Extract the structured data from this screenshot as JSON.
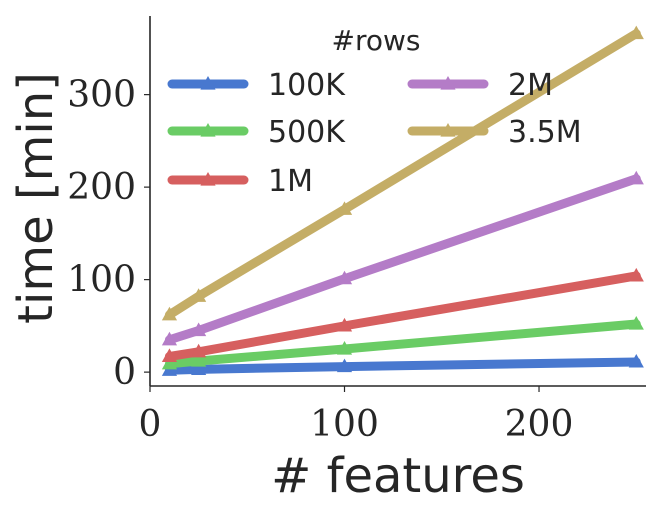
{
  "chart_data": {
    "type": "line",
    "title": "",
    "xlabel": "# features",
    "ylabel": "time [min]",
    "xlim": [
      0,
      255
    ],
    "ylim": [
      -15,
      385
    ],
    "xticks": [
      0,
      100,
      200
    ],
    "yticks": [
      0,
      100,
      200,
      300
    ],
    "x": [
      10,
      25,
      100,
      250
    ],
    "grid": false,
    "legend": {
      "title": "#rows",
      "placement": "top",
      "columns": 2
    },
    "series": [
      {
        "name": "100K",
        "color": "#4878CF",
        "marker": "triangle",
        "values": [
          2,
          3,
          6,
          11
        ]
      },
      {
        "name": "500K",
        "color": "#6ACC65",
        "marker": "triangle",
        "values": [
          9,
          12,
          25,
          52
        ]
      },
      {
        "name": "1M",
        "color": "#D65F5F",
        "marker": "triangle",
        "values": [
          17,
          22,
          50,
          104
        ]
      },
      {
        "name": "2M",
        "color": "#B47CC7",
        "marker": "triangle",
        "values": [
          35,
          45,
          101,
          209
        ]
      },
      {
        "name": "3.5M",
        "color": "#C4AD66",
        "marker": "triangle",
        "values": [
          62,
          82,
          176,
          366
        ]
      }
    ]
  }
}
